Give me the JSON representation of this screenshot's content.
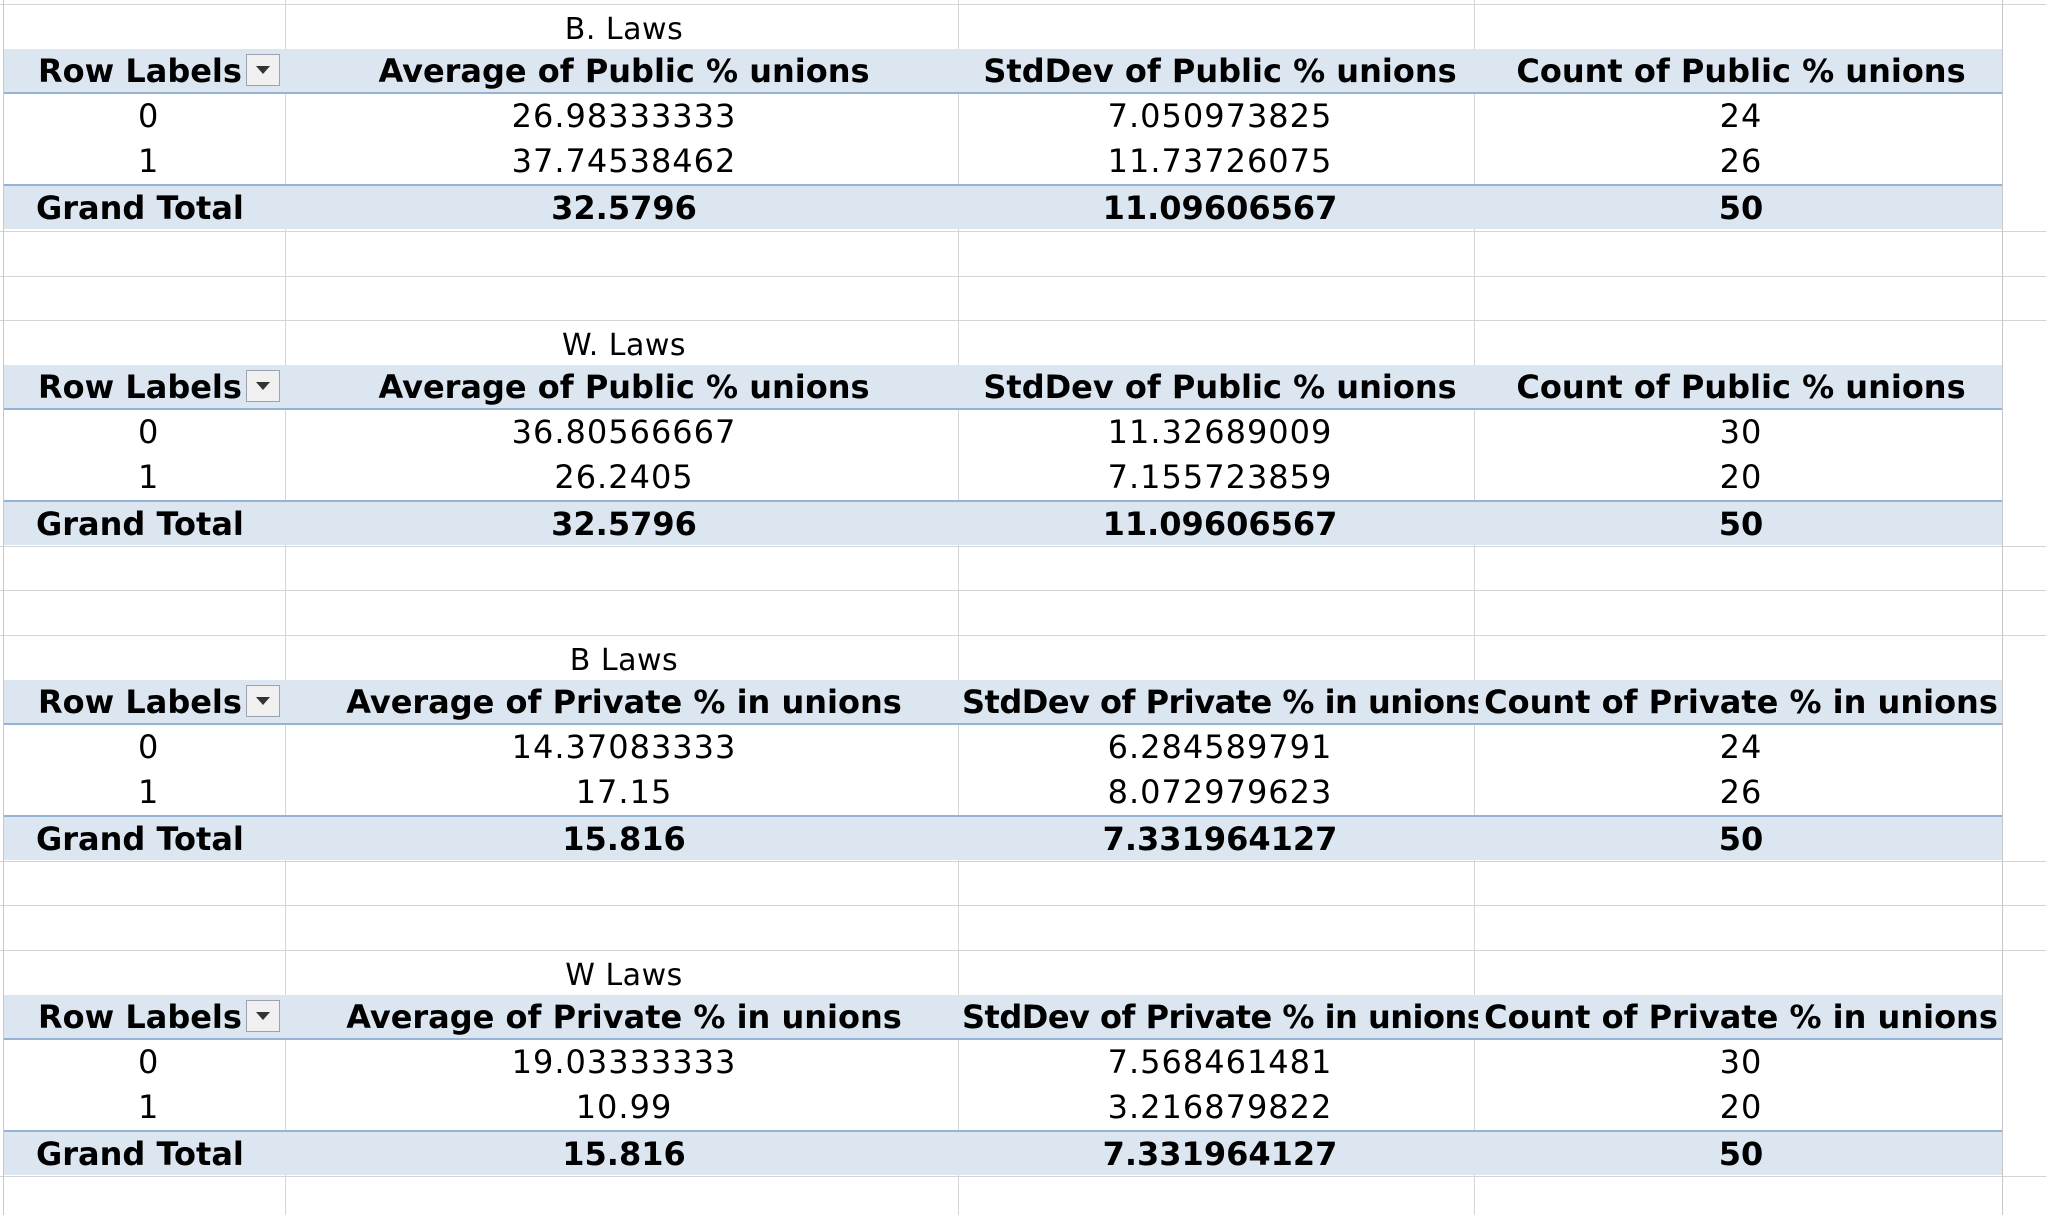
{
  "pivots": [
    {
      "caption": "B. Laws",
      "headers": [
        "Row Labels",
        "Average of Public % unions",
        "StdDev of Public % unions",
        "Count of Public % unions"
      ],
      "rows": [
        [
          "0",
          "26.98333333",
          "7.050973825",
          "24"
        ],
        [
          "1",
          "37.74538462",
          "11.73726075",
          "26"
        ]
      ],
      "total": [
        "Grand Total",
        "32.5796",
        "11.09606567",
        "50"
      ]
    },
    {
      "caption": "W. Laws",
      "headers": [
        "Row Labels",
        "Average of Public % unions",
        "StdDev of Public % unions",
        "Count of Public % unions"
      ],
      "rows": [
        [
          "0",
          "36.80566667",
          "11.32689009",
          "30"
        ],
        [
          "1",
          "26.2405",
          "7.155723859",
          "20"
        ]
      ],
      "total": [
        "Grand Total",
        "32.5796",
        "11.09606567",
        "50"
      ]
    },
    {
      "caption": "B Laws",
      "headers": [
        "Row Labels",
        "Average of Private % in unions",
        "StdDev of Private % in unions",
        "Count of Private % in unions"
      ],
      "rows": [
        [
          "0",
          "14.37083333",
          "6.284589791",
          "24"
        ],
        [
          "1",
          "17.15",
          "8.072979623",
          "26"
        ]
      ],
      "total": [
        "Grand Total",
        "15.816",
        "7.331964127",
        "50"
      ]
    },
    {
      "caption": "W Laws",
      "headers": [
        "Row Labels",
        "Average of Private % in unions",
        "StdDev of Private % in unions",
        "Count of Private % in unions"
      ],
      "rows": [
        [
          "0",
          "19.03333333",
          "7.568461481",
          "30"
        ],
        [
          "1",
          "10.99",
          "3.216879822",
          "20"
        ]
      ],
      "total": [
        "Grand Total",
        "15.816",
        "7.331964127",
        "50"
      ]
    }
  ],
  "icons": {
    "filter_dropdown": "chevron-down-icon"
  },
  "colors": {
    "header_fill": "#dce6f1",
    "border_accent": "#95b3d7",
    "gridline": "#d4d4d4"
  }
}
